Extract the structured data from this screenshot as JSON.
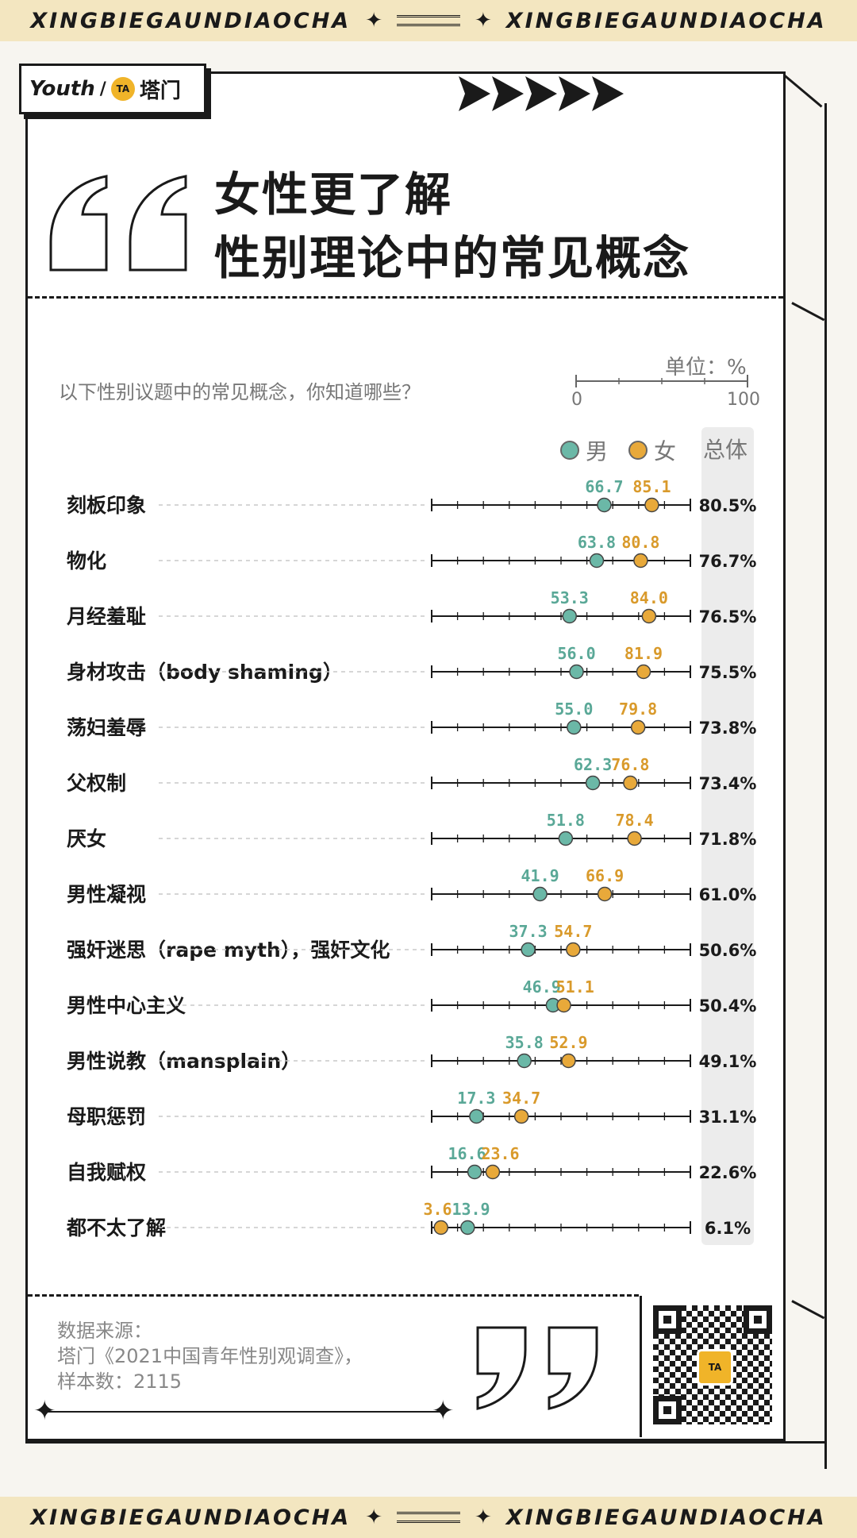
{
  "banner": {
    "text": "XINGBIEGAUNDIAOCHA"
  },
  "logo": {
    "brand": "Youth",
    "partner_icon": "TA",
    "partner": "塔门"
  },
  "title": {
    "line1": "女性更了解",
    "line2": "性别理论中的常见概念"
  },
  "question": "以下性别议题中的常见概念，你知道哪些？",
  "unit_label": "单位：%",
  "scale": {
    "min_label": "0",
    "max_label": "100"
  },
  "legend": {
    "male": "男",
    "female": "女",
    "total": "总体"
  },
  "colors": {
    "male": "#6bb8a7",
    "female": "#e8a93a",
    "male_text": "#5aa897",
    "female_text": "#d99a2b",
    "axis": "#1a1a1a"
  },
  "source": {
    "line1": "数据来源：",
    "line2": "塔门《2021中国青年性别观调查》，",
    "line3": "样本数：2115"
  },
  "qr": {
    "center_icon": "TA"
  },
  "chart_data": {
    "type": "dot-plot",
    "unit": "%",
    "xlim": [
      0,
      100
    ],
    "series": [
      {
        "name": "男",
        "values": [
          66.7,
          63.8,
          53.3,
          56.0,
          55.0,
          62.3,
          51.8,
          41.9,
          37.3,
          46.9,
          35.8,
          17.3,
          16.6,
          13.9
        ]
      },
      {
        "name": "女",
        "values": [
          85.1,
          80.8,
          84.0,
          81.9,
          79.8,
          76.8,
          78.4,
          66.9,
          54.7,
          51.1,
          52.9,
          34.7,
          23.6,
          3.6
        ]
      },
      {
        "name": "总体",
        "values": [
          80.5,
          76.7,
          76.5,
          75.5,
          73.8,
          73.4,
          71.8,
          61.0,
          50.6,
          50.4,
          49.1,
          31.1,
          22.6,
          6.1
        ]
      }
    ],
    "categories": [
      "刻板印象",
      "物化",
      "月经羞耻",
      "身材攻击（body shaming）",
      "荡妇羞辱",
      "父权制",
      "厌女",
      "男性凝视",
      "强奸迷思（rape myth），强奸文化",
      "男性中心主义",
      "男性说教（mansplain）",
      "母职惩罚",
      "自我赋权",
      "都不太了解"
    ],
    "male_labels": [
      "66.7",
      "63.8",
      "53.3",
      "56.0",
      "55.0",
      "62.3",
      "51.8",
      "41.9",
      "37.3",
      "46.9",
      "35.8",
      "17.3",
      "16.6",
      "13.9"
    ],
    "female_labels": [
      "85.1",
      "80.8",
      "84.0",
      "81.9",
      "79.8",
      "76.8",
      "78.4",
      "66.9",
      "54.7",
      "51.1",
      "52.9",
      "34.7",
      "23.6",
      "3.6"
    ],
    "total_labels": [
      "80.5%",
      "76.7%",
      "76.5%",
      "75.5%",
      "73.8%",
      "73.4%",
      "71.8%",
      "61.0%",
      "50.6%",
      "50.4%",
      "49.1%",
      "31.1%",
      "22.6%",
      "6.1%"
    ]
  }
}
